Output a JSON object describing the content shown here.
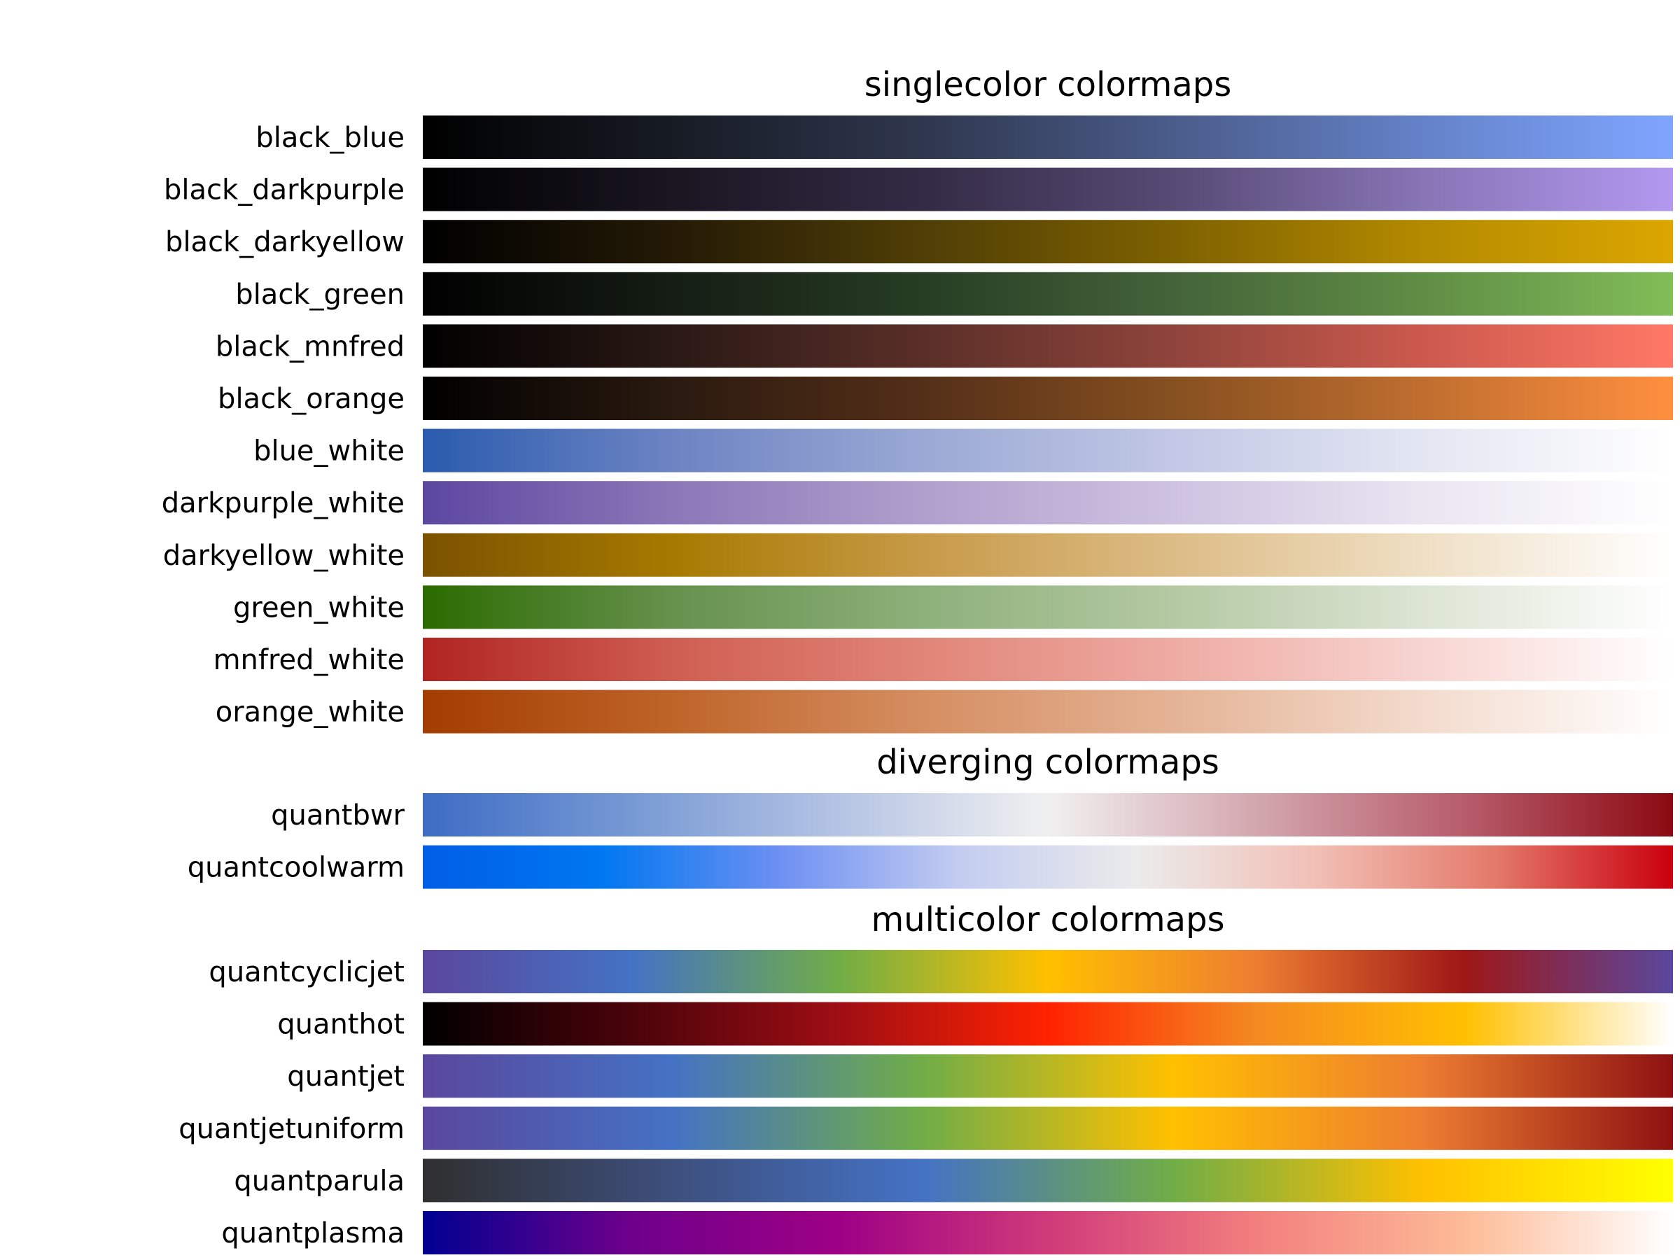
{
  "chart_data": {
    "type": "heatmap",
    "sections": [
      {
        "title": "singlecolor colormaps",
        "colormaps": [
          {
            "name": "black_blue",
            "stops": [
              "#000000",
              "#171b24",
              "#2f374e",
              "#4a5c8a",
              "#6482c8",
              "#7fa5ff"
            ]
          },
          {
            "name": "black_darkpurple",
            "stops": [
              "#000000",
              "#191621",
              "#332b45",
              "#574a74",
              "#8775b5",
              "#b398f0"
            ]
          },
          {
            "name": "black_darkyellow",
            "stops": [
              "#000000",
              "#241a06",
              "#4f3e06",
              "#7e6100",
              "#b38a00",
              "#dba600"
            ]
          },
          {
            "name": "black_green",
            "stops": [
              "#000000",
              "#151d14",
              "#263d23",
              "#44633a",
              "#5f8d45",
              "#81bd58"
            ]
          },
          {
            "name": "black_mnfred",
            "stops": [
              "#000000",
              "#2a1915",
              "#5a2f28",
              "#8f443b",
              "#cb594d",
              "#ff7866"
            ]
          },
          {
            "name": "black_orange",
            "stops": [
              "#000000",
              "#2a1a0f",
              "#542f18",
              "#865020",
              "#bf6e2f",
              "#ff8f3f"
            ]
          },
          {
            "name": "blue_white",
            "stops": [
              "#2a5bad",
              "#6d84c3",
              "#9aa9d4",
              "#c2c8e5",
              "#e3e6f2",
              "#ffffff"
            ]
          },
          {
            "name": "darkpurple_white",
            "stops": [
              "#5c47a0",
              "#8c77b8",
              "#b09fcd",
              "#cec2e0",
              "#e9e5f1",
              "#ffffff"
            ]
          },
          {
            "name": "darkyellow_white",
            "stops": [
              "#7a5200",
              "#a67a00",
              "#c79a48",
              "#dcbc86",
              "#efdfc4",
              "#ffffff"
            ]
          },
          {
            "name": "green_white",
            "stops": [
              "#2b6b00",
              "#66914d",
              "#8db07a",
              "#b4c9a3",
              "#dce4d3",
              "#ffffff"
            ]
          },
          {
            "name": "mnfred_white",
            "stops": [
              "#b02421",
              "#cf5e52",
              "#e08577",
              "#eeaba3",
              "#f7d4d0",
              "#ffffff"
            ]
          },
          {
            "name": "orange_white",
            "stops": [
              "#a33c00",
              "#be6429",
              "#d58e61",
              "#e4b395",
              "#f3dbcd",
              "#ffffff"
            ]
          }
        ]
      },
      {
        "title": "diverging colormaps",
        "colormaps": [
          {
            "name": "quantbwr",
            "stops": [
              "#3d6cc4",
              "#7799d4",
              "#b5c4e4",
              "#f0f0f0",
              "#d3a7ae",
              "#b75c6b",
              "#8b0a12"
            ]
          },
          {
            "name": "quantcoolwarm",
            "stops": [
              "#005ee6",
              "#0077f0",
              "#6d90f2",
              "#c3ccf0",
              "#ebebeb",
              "#f1bfb5",
              "#e47a6a",
              "#c9000e"
            ]
          }
        ]
      },
      {
        "title": "multicolor colormaps",
        "colormaps": [
          {
            "name": "quantcyclicjet",
            "stops": [
              "#5a479d",
              "#4472c4",
              "#70ad47",
              "#ffc000",
              "#ed7d31",
              "#9e1717",
              "#5a479d"
            ]
          },
          {
            "name": "quanthot",
            "stops": [
              "#000000",
              "#4a030a",
              "#9e0e14",
              "#ff2200",
              "#f48921",
              "#ffc000",
              "#ffffff"
            ]
          },
          {
            "name": "quantjet",
            "stops": [
              "#5a479d",
              "#4472c4",
              "#70ad47",
              "#ffc000",
              "#ed7d31",
              "#8e1111"
            ]
          },
          {
            "name": "quantjetuniform",
            "stops": [
              "#5a479d",
              "#4472c4",
              "#70ad47",
              "#ffc000",
              "#ed7d31",
              "#8e1111"
            ]
          },
          {
            "name": "quantparula",
            "stops": [
              "#2f2f2f",
              "#3d4f7d",
              "#4472c4",
              "#70ad47",
              "#ffc000",
              "#ffff00"
            ]
          },
          {
            "name": "quantplasma",
            "stops": [
              "#000090",
              "#6e008b",
              "#9e0085",
              "#cf3b7a",
              "#f27f7e",
              "#fdbb97",
              "#ffffff"
            ]
          }
        ]
      }
    ]
  }
}
